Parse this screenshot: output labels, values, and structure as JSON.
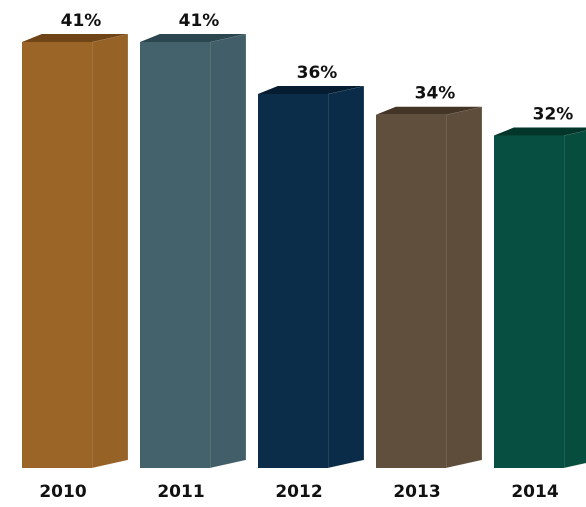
{
  "chart_data": {
    "type": "bar",
    "categories": [
      "2010",
      "2011",
      "2012",
      "2013",
      "2014"
    ],
    "values": [
      41,
      41,
      36,
      34,
      32
    ],
    "data_labels": [
      "41%",
      "41%",
      "36%",
      "34%",
      "32%"
    ],
    "unit": "%",
    "style": "3d-column",
    "colors": [
      "#9b6527",
      "#44626c",
      "#0b2d4a",
      "#604f3c",
      "#074f40"
    ],
    "top_colors": [
      "#6f4417",
      "#2c464f",
      "#061d31",
      "#433626",
      "#03362b"
    ],
    "ylim": [
      0,
      41
    ],
    "grid": false,
    "legend": "none",
    "title": "",
    "xlabel": "",
    "ylabel": ""
  }
}
